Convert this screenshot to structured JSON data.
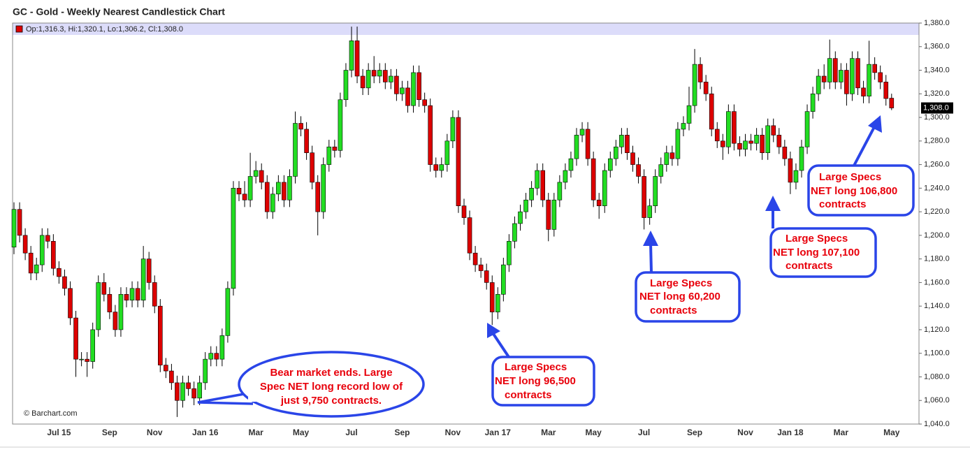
{
  "chart_data": {
    "type": "candlestick",
    "title": "GC - Gold - Weekly Nearest Candlestick Chart",
    "ohlc_label": "Op:1,316.3, Hi:1,320.1, Lo:1,306.2, Cl:1,308.0",
    "last_label": "1,308.0",
    "credit": "© Barchart.com",
    "up_color": "#22dd22",
    "down_color": "#dd0000",
    "categories": [
      null,
      null,
      null,
      null,
      null,
      null,
      null,
      null,
      "Jul 15",
      null,
      null,
      null,
      null,
      null,
      null,
      null,
      null,
      "Sep",
      null,
      null,
      null,
      null,
      null,
      null,
      null,
      "Nov",
      null,
      null,
      null,
      null,
      null,
      null,
      null,
      null,
      "Jan 16",
      null,
      null,
      null,
      null,
      null,
      null,
      null,
      null,
      "Mar",
      null,
      null,
      null,
      null,
      null,
      null,
      null,
      "May",
      null,
      null,
      null,
      null,
      null,
      null,
      null,
      null,
      "Jul",
      null,
      null,
      null,
      null,
      null,
      null,
      null,
      null,
      "Sep",
      null,
      null,
      null,
      null,
      null,
      null,
      null,
      null,
      "Nov",
      null,
      null,
      null,
      null,
      null,
      null,
      null,
      "Jan 17",
      null,
      null,
      null,
      null,
      null,
      null,
      null,
      null,
      "Mar",
      null,
      null,
      null,
      null,
      null,
      null,
      null,
      "May",
      null,
      null,
      null,
      null,
      null,
      null,
      null,
      null,
      "Jul",
      null,
      null,
      null,
      null,
      null,
      null,
      null,
      null,
      "Sep",
      null,
      null,
      null,
      null,
      null,
      null,
      null,
      null,
      "Nov",
      null,
      null,
      null,
      null,
      null,
      null,
      null,
      "Jan 18",
      null,
      null,
      null,
      null,
      null,
      null,
      null,
      null,
      "Mar",
      null,
      null,
      null,
      null,
      null,
      null,
      null,
      null,
      "May"
    ],
    "open": [
      1190,
      1222,
      1200,
      1185,
      1168,
      1175,
      1200,
      1195,
      1172,
      1165,
      1155,
      1130,
      1095,
      1095,
      1093,
      1120,
      1160,
      1150,
      1135,
      1120,
      1150,
      1145,
      1155,
      1145,
      1180,
      1160,
      1140,
      1090,
      1085,
      1075,
      1060,
      1075,
      1070,
      1062,
      1075,
      1095,
      1100,
      1095,
      1115,
      1155,
      1240,
      1235,
      1230,
      1250,
      1255,
      1245,
      1220,
      1235,
      1245,
      1230,
      1250,
      1295,
      1290,
      1270,
      1245,
      1220,
      1260,
      1275,
      1272,
      1315,
      1340,
      1365,
      1335,
      1325,
      1340,
      1335,
      1340,
      1330,
      1335,
      1320,
      1325,
      1310,
      1338,
      1315,
      1310,
      1260,
      1255,
      1260,
      1280,
      1300,
      1225,
      1215,
      1185,
      1175,
      1170,
      1160,
      1135,
      1150,
      1175,
      1195,
      1210,
      1220,
      1230,
      1240,
      1255,
      1230,
      1205,
      1230,
      1245,
      1255,
      1265,
      1285,
      1290,
      1265,
      1230,
      1225,
      1255,
      1265,
      1275,
      1285,
      1270,
      1260,
      1250,
      1215,
      1225,
      1250,
      1260,
      1270,
      1265,
      1290,
      1295,
      1310,
      1345,
      1330,
      1320,
      1290,
      1280,
      1275,
      1305,
      1278,
      1273,
      1280,
      1278,
      1285,
      1270,
      1293,
      1285,
      1275,
      1265,
      1245,
      1255,
      1275,
      1305,
      1320,
      1335,
      1330,
      1350,
      1330,
      1340,
      1320,
      1350,
      1325,
      1318,
      1345,
      1338,
      1330,
      1316.3
    ],
    "high": [
      1228,
      1228,
      1206,
      1191,
      1181,
      1206,
      1206,
      1201,
      1178,
      1171,
      1161,
      1136,
      1101,
      1101,
      1126,
      1166,
      1168,
      1156,
      1141,
      1156,
      1156,
      1161,
      1161,
      1191,
      1186,
      1166,
      1146,
      1096,
      1091,
      1081,
      1081,
      1081,
      1076,
      1081,
      1101,
      1106,
      1106,
      1121,
      1161,
      1246,
      1246,
      1246,
      1270,
      1263,
      1261,
      1251,
      1241,
      1251,
      1251,
      1256,
      1305,
      1301,
      1296,
      1276,
      1251,
      1266,
      1281,
      1281,
      1321,
      1346,
      1377,
      1377,
      1341,
      1346,
      1352,
      1346,
      1346,
      1341,
      1341,
      1331,
      1331,
      1344,
      1344,
      1321,
      1316,
      1266,
      1266,
      1286,
      1306,
      1306,
      1231,
      1221,
      1191,
      1181,
      1176,
      1166,
      1156,
      1181,
      1201,
      1216,
      1226,
      1236,
      1246,
      1261,
      1261,
      1236,
      1236,
      1251,
      1261,
      1271,
      1291,
      1296,
      1296,
      1271,
      1236,
      1261,
      1271,
      1281,
      1291,
      1291,
      1276,
      1266,
      1256,
      1231,
      1256,
      1266,
      1276,
      1276,
      1296,
      1301,
      1326,
      1358,
      1351,
      1336,
      1326,
      1296,
      1286,
      1311,
      1311,
      1284,
      1286,
      1286,
      1291,
      1291,
      1299,
      1299,
      1291,
      1281,
      1271,
      1261,
      1281,
      1311,
      1326,
      1341,
      1345,
      1366,
      1356,
      1346,
      1346,
      1356,
      1356,
      1331,
      1365,
      1351,
      1344,
      1336,
      1320.1
    ],
    "low": [
      1184,
      1194,
      1179,
      1162,
      1162,
      1169,
      1189,
      1166,
      1159,
      1149,
      1124,
      1080,
      1089,
      1080,
      1087,
      1114,
      1144,
      1129,
      1114,
      1114,
      1139,
      1139,
      1139,
      1139,
      1154,
      1134,
      1084,
      1079,
      1069,
      1046,
      1054,
      1064,
      1056,
      1056,
      1069,
      1089,
      1089,
      1089,
      1109,
      1149,
      1229,
      1224,
      1224,
      1244,
      1239,
      1214,
      1214,
      1229,
      1224,
      1224,
      1244,
      1284,
      1264,
      1239,
      1200,
      1214,
      1254,
      1266,
      1266,
      1309,
      1334,
      1329,
      1319,
      1319,
      1329,
      1329,
      1324,
      1324,
      1314,
      1314,
      1304,
      1304,
      1309,
      1304,
      1254,
      1249,
      1249,
      1254,
      1274,
      1219,
      1209,
      1179,
      1169,
      1164,
      1154,
      1124,
      1129,
      1144,
      1169,
      1189,
      1204,
      1214,
      1224,
      1234,
      1224,
      1195,
      1199,
      1224,
      1239,
      1249,
      1259,
      1279,
      1259,
      1224,
      1214,
      1219,
      1249,
      1259,
      1269,
      1264,
      1254,
      1244,
      1205,
      1209,
      1219,
      1244,
      1254,
      1259,
      1259,
      1284,
      1289,
      1304,
      1324,
      1314,
      1284,
      1274,
      1264,
      1269,
      1272,
      1267,
      1267,
      1272,
      1272,
      1264,
      1264,
      1279,
      1269,
      1259,
      1235,
      1239,
      1249,
      1269,
      1299,
      1314,
      1324,
      1324,
      1324,
      1324,
      1310,
      1314,
      1319,
      1312,
      1312,
      1332,
      1324,
      1310,
      1306.2
    ],
    "close": [
      1222,
      1200,
      1185,
      1168,
      1175,
      1200,
      1195,
      1172,
      1165,
      1155,
      1130,
      1095,
      1095,
      1093,
      1120,
      1160,
      1150,
      1135,
      1120,
      1150,
      1145,
      1155,
      1145,
      1180,
      1160,
      1140,
      1090,
      1085,
      1075,
      1060,
      1075,
      1070,
      1062,
      1075,
      1095,
      1100,
      1095,
      1115,
      1155,
      1240,
      1235,
      1230,
      1250,
      1255,
      1245,
      1220,
      1235,
      1245,
      1230,
      1250,
      1295,
      1290,
      1270,
      1245,
      1220,
      1260,
      1275,
      1272,
      1315,
      1340,
      1365,
      1335,
      1325,
      1340,
      1335,
      1340,
      1330,
      1335,
      1320,
      1325,
      1310,
      1338,
      1315,
      1310,
      1260,
      1255,
      1260,
      1280,
      1300,
      1225,
      1215,
      1185,
      1175,
      1170,
      1160,
      1135,
      1150,
      1175,
      1195,
      1210,
      1220,
      1230,
      1240,
      1255,
      1230,
      1205,
      1230,
      1245,
      1255,
      1265,
      1285,
      1290,
      1265,
      1230,
      1225,
      1255,
      1265,
      1275,
      1285,
      1270,
      1260,
      1250,
      1215,
      1225,
      1250,
      1260,
      1270,
      1265,
      1290,
      1295,
      1310,
      1345,
      1330,
      1320,
      1290,
      1280,
      1275,
      1305,
      1278,
      1273,
      1280,
      1278,
      1285,
      1270,
      1293,
      1285,
      1275,
      1265,
      1245,
      1255,
      1275,
      1305,
      1320,
      1335,
      1330,
      1350,
      1330,
      1340,
      1320,
      1350,
      1325,
      1318,
      1345,
      1338,
      1330,
      1316,
      1308.0
    ],
    "ylim": [
      1040,
      1380
    ],
    "yticks": [
      {
        "value": 1040,
        "label": "1,040.0"
      },
      {
        "value": 1060,
        "label": "1,060.0"
      },
      {
        "value": 1080,
        "label": "1,080.0"
      },
      {
        "value": 1100,
        "label": "1,100.0"
      },
      {
        "value": 1120,
        "label": "1,120.0"
      },
      {
        "value": 1140,
        "label": "1,140.0"
      },
      {
        "value": 1160,
        "label": "1,160.0"
      },
      {
        "value": 1180,
        "label": "1,180.0"
      },
      {
        "value": 1200,
        "label": "1,200.0"
      },
      {
        "value": 1220,
        "label": "1,220.0"
      },
      {
        "value": 1240,
        "label": "1,240.0"
      },
      {
        "value": 1260,
        "label": "1,260.0"
      },
      {
        "value": 1280,
        "label": "1,280.0"
      },
      {
        "value": 1300,
        "label": "1,300.0"
      },
      {
        "value": 1320,
        "label": "1,320.0"
      },
      {
        "value": 1340,
        "label": "1,340.0"
      },
      {
        "value": 1360,
        "label": "1,360.0"
      },
      {
        "value": 1380,
        "label": "1,380.0"
      }
    ],
    "annotations": [
      {
        "lines": [
          "Bear market ends. Large",
          "Spec NET long record low of",
          "just 9,750 contracts."
        ]
      },
      {
        "lines": [
          "Large Specs",
          "NET long 96,500",
          "contracts"
        ]
      },
      {
        "lines": [
          "Large Specs",
          "NET long 60,200",
          "contracts"
        ]
      },
      {
        "lines": [
          "Large Specs",
          "NET long 107,100",
          "contracts"
        ]
      },
      {
        "lines": [
          "Large Specs",
          "NET long 106,800",
          "contracts"
        ]
      }
    ]
  }
}
